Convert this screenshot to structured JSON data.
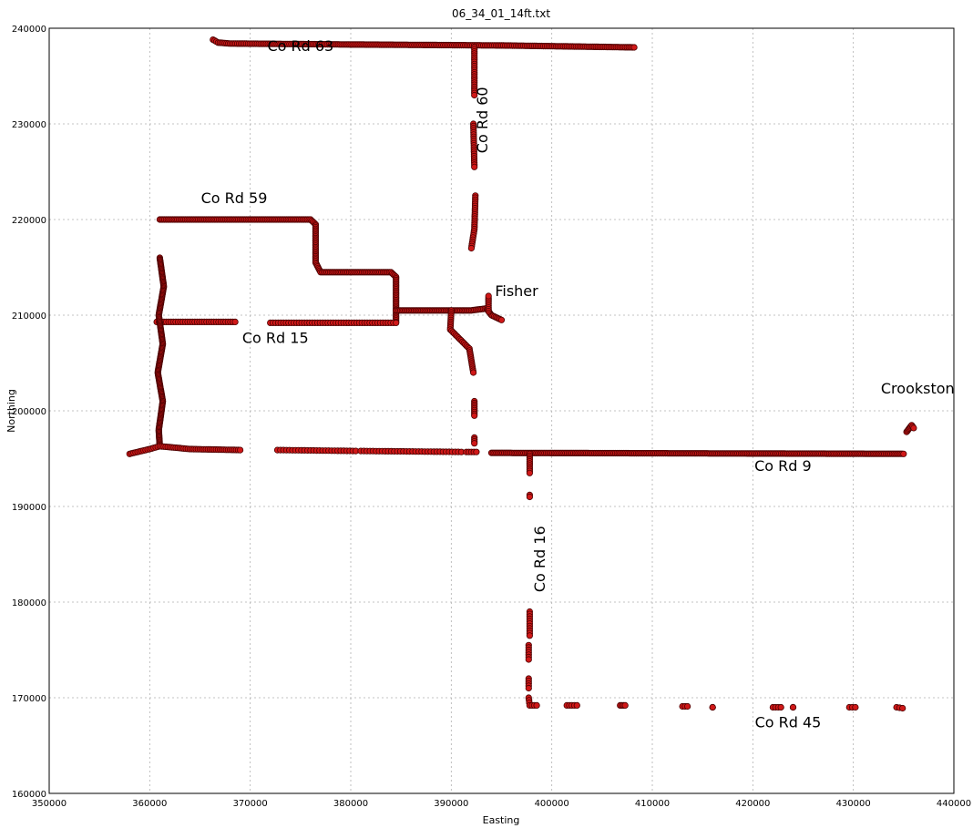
{
  "chart_data": {
    "type": "scatter",
    "title": "06_34_01_14ft.txt",
    "xlabel": "Easting",
    "ylabel": "Northing",
    "xlim": [
      350000,
      440000
    ],
    "ylim": [
      160000,
      240000
    ],
    "xticks": [
      350000,
      360000,
      370000,
      380000,
      390000,
      400000,
      410000,
      420000,
      430000,
      440000
    ],
    "yticks": [
      160000,
      170000,
      180000,
      190000,
      200000,
      210000,
      220000,
      230000,
      240000
    ],
    "grid": true,
    "marker_color": "#d01818",
    "marker_edge_color": "#4a0000",
    "series": [
      {
        "segments": [
          {
            "points": [
              [
                366300,
                238800
              ],
              [
                366800,
                238500
              ],
              [
                368000,
                238400
              ],
              [
                380000,
                238300
              ],
              [
                395000,
                238200
              ],
              [
                408200,
                238000
              ]
            ],
            "spacing": 180
          },
          {
            "points": [
              [
                392300,
                238000
              ],
              [
                392300,
                233000
              ]
            ],
            "spacing": 220
          },
          {
            "points": [
              [
                392200,
                230000
              ],
              [
                392300,
                225500
              ]
            ],
            "spacing": 220
          },
          {
            "points": [
              [
                392400,
                222500
              ],
              [
                392300,
                219000
              ],
              [
                392000,
                217000
              ]
            ],
            "spacing": 220
          },
          {
            "points": [
              [
                361000,
                220000
              ],
              [
                376000,
                220000
              ],
              [
                376500,
                219500
              ],
              [
                376500,
                215500
              ],
              [
                377000,
                214500
              ],
              [
                384000,
                214500
              ],
              [
                384500,
                214000
              ],
              [
                384500,
                209300
              ]
            ],
            "spacing": 160
          },
          {
            "points": [
              [
                384500,
                210500
              ],
              [
                392000,
                210500
              ],
              [
                393500,
                210700
              ],
              [
                394000,
                210000
              ],
              [
                395000,
                209500
              ]
            ],
            "spacing": 150
          },
          {
            "points": [
              [
                393700,
                210400
              ],
              [
                393700,
                212000
              ]
            ],
            "spacing": 200
          },
          {
            "points": [
              [
                360700,
                209300
              ],
              [
                368500,
                209300
              ]
            ],
            "spacing": 240
          },
          {
            "points": [
              [
                372000,
                209200
              ],
              [
                384500,
                209200
              ]
            ],
            "spacing": 260
          },
          {
            "points": [
              [
                390000,
                210500
              ],
              [
                389900,
                208500
              ],
              [
                391800,
                206500
              ],
              [
                392200,
                204000
              ]
            ],
            "spacing": 200
          },
          {
            "points": [
              [
                392300,
                201000
              ],
              [
                392300,
                199500
              ]
            ],
            "spacing": 200
          },
          {
            "points": [
              [
                392300,
                197200
              ],
              [
                392300,
                196600
              ]
            ],
            "spacing": 200
          },
          {
            "points": [
              [
                361000,
                216000
              ],
              [
                361400,
                213000
              ],
              [
                360900,
                210000
              ],
              [
                361300,
                207000
              ],
              [
                360800,
                204000
              ],
              [
                361300,
                201000
              ],
              [
                360900,
                198000
              ],
              [
                361000,
                196300
              ]
            ],
            "spacing": 120
          },
          {
            "points": [
              [
                358000,
                195500
              ],
              [
                360000,
                196000
              ],
              [
                361000,
                196300
              ],
              [
                364000,
                196000
              ],
              [
                369000,
                195900
              ]
            ],
            "spacing": 200
          },
          {
            "points": [
              [
                372700,
                195900
              ],
              [
                380500,
                195800
              ]
            ],
            "spacing": 300
          },
          {
            "points": [
              [
                381000,
                195800
              ],
              [
                391000,
                195700
              ]
            ],
            "spacing": 300
          },
          {
            "points": [
              [
                391500,
                195700
              ],
              [
                392500,
                195700
              ]
            ],
            "spacing": 250
          },
          {
            "points": [
              [
                394000,
                195600
              ],
              [
                435000,
                195500
              ]
            ],
            "spacing": 160
          },
          {
            "points": [
              [
                435300,
                197800
              ],
              [
                435800,
                198500
              ],
              [
                436000,
                198200
              ]
            ],
            "spacing": 150
          },
          {
            "points": [
              [
                397800,
                195500
              ],
              [
                397800,
                193500
              ]
            ],
            "spacing": 200
          },
          {
            "points": [
              [
                397800,
                191200
              ],
              [
                397800,
                191000
              ]
            ],
            "spacing": 200
          },
          {
            "points": [
              [
                397800,
                179000
              ],
              [
                397800,
                176500
              ]
            ],
            "spacing": 250
          },
          {
            "points": [
              [
                397700,
                175500
              ],
              [
                397700,
                174000
              ]
            ],
            "spacing": 250
          },
          {
            "points": [
              [
                397700,
                172000
              ],
              [
                397700,
                171000
              ]
            ],
            "spacing": 250
          },
          {
            "points": [
              [
                397700,
                170000
              ],
              [
                397800,
                169200
              ],
              [
                398500,
                169200
              ]
            ],
            "spacing": 250
          },
          {
            "points": [
              [
                401500,
                169200
              ],
              [
                402500,
                169200
              ]
            ],
            "spacing": 250
          },
          {
            "points": [
              [
                406800,
                169200
              ],
              [
                407300,
                169200
              ]
            ],
            "spacing": 200
          },
          {
            "points": [
              [
                413000,
                169100
              ],
              [
                413500,
                169100
              ]
            ],
            "spacing": 300
          },
          {
            "points": [
              [
                416000,
                169000
              ],
              [
                416000,
                169000
              ]
            ],
            "spacing": 300
          },
          {
            "points": [
              [
                422000,
                169000
              ],
              [
                422800,
                169000
              ]
            ],
            "spacing": 250
          },
          {
            "points": [
              [
                424000,
                169000
              ],
              [
                424000,
                169000
              ]
            ],
            "spacing": 300
          },
          {
            "points": [
              [
                429600,
                169000
              ],
              [
                430200,
                169000
              ]
            ],
            "spacing": 250
          },
          {
            "points": [
              [
                434300,
                169000
              ],
              [
                434900,
                168900
              ]
            ],
            "spacing": 250
          }
        ]
      }
    ],
    "annotations": [
      {
        "text": "Co Rd 63",
        "x": 375000,
        "y": 237600,
        "rotate": 0
      },
      {
        "text": "Co Rd 60",
        "x": 393600,
        "y": 230400,
        "rotate": -90
      },
      {
        "text": "Co Rd 59",
        "x": 368400,
        "y": 221700,
        "rotate": 0
      },
      {
        "text": "Fisher",
        "x": 396500,
        "y": 212000,
        "rotate": 0
      },
      {
        "text": "Co Rd 15",
        "x": 372500,
        "y": 207100,
        "rotate": 0
      },
      {
        "text": "Crookston",
        "x": 436400,
        "y": 201800,
        "rotate": 0
      },
      {
        "text": "Co Rd 9",
        "x": 423000,
        "y": 193700,
        "rotate": 0
      },
      {
        "text": "Co Rd 16",
        "x": 399300,
        "y": 184500,
        "rotate": -90
      },
      {
        "text": "Co Rd 45",
        "x": 423500,
        "y": 166900,
        "rotate": 0
      }
    ]
  }
}
